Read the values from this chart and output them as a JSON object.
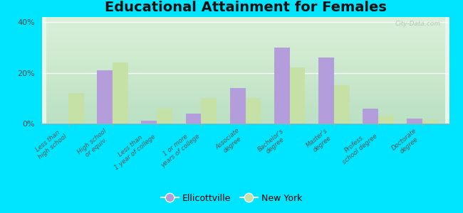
{
  "title": "Educational Attainment for Females",
  "categories": [
    "Less than\nhigh school",
    "High school\nor equiv.",
    "Less than\n1 year of college",
    "1 or more\nyears of college",
    "Associate\ndegree",
    "Bachelor's\ndegree",
    "Master's\ndegree",
    "Profess.\nschool degree",
    "Doctorate\ndegree"
  ],
  "ellicottville": [
    0.0,
    21.0,
    1.0,
    4.0,
    14.0,
    30.0,
    26.0,
    6.0,
    2.0
  ],
  "new_york": [
    12.0,
    24.0,
    6.0,
    10.0,
    10.0,
    22.0,
    15.0,
    3.0,
    1.5
  ],
  "ellicottville_color": "#b39ddb",
  "new_york_color": "#c5e1a5",
  "chart_bg_top": "#d4edda",
  "chart_bg_bottom": "#e8f5e9",
  "outer_background": "#00e5ff",
  "title_fontsize": 14,
  "ylim": [
    0,
    42
  ],
  "yticks": [
    0,
    20,
    40
  ],
  "ytick_labels": [
    "0%",
    "20%",
    "40%"
  ],
  "bar_width": 0.35,
  "watermark": "City-Data.com"
}
